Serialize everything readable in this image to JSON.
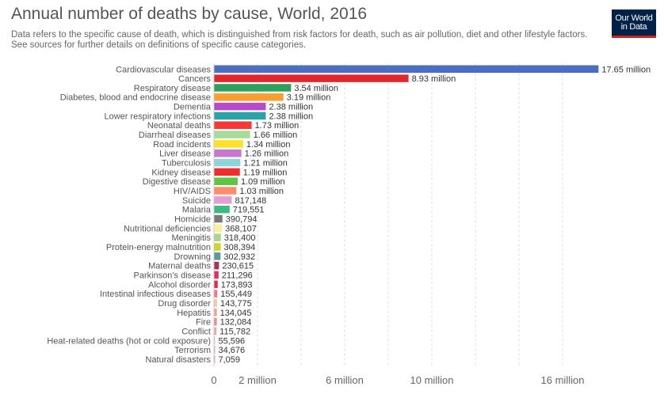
{
  "header": {
    "title": "Annual number of deaths by cause, World, 2016",
    "subtitle": "Data refers to the specific cause of death, which is distinguished from risk factors for death, such as air pollution, diet and other lifestyle factors. See sources for further details on definitions of specific cause categories."
  },
  "logo": {
    "line1": "Our World",
    "line2": "in Data",
    "bg_color": "#002147",
    "accent_color": "#ce261e"
  },
  "chart_data": {
    "type": "bar",
    "orientation": "horizontal",
    "title": "Annual number of deaths by cause, World, 2016",
    "xlabel": "",
    "ylabel": "",
    "xlim": [
      0,
      20000000
    ],
    "x_ticks": [
      0,
      2000000,
      6000000,
      10000000,
      16000000
    ],
    "x_tick_labels": [
      "0",
      "2 million",
      "6 million",
      "10 million",
      "16 million"
    ],
    "gridlines": [
      2000000,
      4000000,
      6000000,
      8000000,
      10000000,
      12000000,
      14000000,
      16000000
    ],
    "grid": true,
    "categories": [
      "Cardiovascular diseases",
      "Cancers",
      "Respiratory disease",
      "Diabetes, blood and endocrine disease",
      "Dementia",
      "Lower respiratory infections",
      "Neonatal deaths",
      "Diarrheal diseases",
      "Road incidents",
      "Liver disease",
      "Tuberculosis",
      "Kidney disease",
      "Digestive disease",
      "HIV/AIDS",
      "Suicide",
      "Malaria",
      "Homicide",
      "Nutritional deficiencies",
      "Meningitis",
      "Protein-energy malnutrition",
      "Drowning",
      "Maternal deaths",
      "Parkinson's disease",
      "Alcohol disorder",
      "Intestinal infectious diseases",
      "Drug disorder",
      "Hepatitis",
      "Fire",
      "Conflict",
      "Heat-related deaths (hot or cold exposure)",
      "Terrorism",
      "Natural disasters"
    ],
    "values": [
      17650000,
      8930000,
      3540000,
      3190000,
      2380000,
      2380000,
      1730000,
      1660000,
      1340000,
      1260000,
      1210000,
      1190000,
      1090000,
      1030000,
      817148,
      719551,
      390794,
      368107,
      318400,
      308394,
      302932,
      230615,
      211296,
      173893,
      155449,
      143775,
      134045,
      132084,
      115782,
      55596,
      34676,
      7059
    ],
    "value_labels": [
      "17.65 million",
      "8.93 million",
      "3.54 million",
      "3.19 million",
      "2.38 million",
      "2.38 million",
      "1.73 million",
      "1.66 million",
      "1.34 million",
      "1.26 million",
      "1.21 million",
      "1.19 million",
      "1.09 million",
      "1.03 million",
      "817,148",
      "719,551",
      "390,794",
      "368,107",
      "318,400",
      "308,394",
      "302,932",
      "230,615",
      "211,296",
      "173,893",
      "155,449",
      "143,775",
      "134,045",
      "132,084",
      "115,782",
      "55,596",
      "34,676",
      "7,059"
    ],
    "colors": [
      "#4c6dc4",
      "#e3282c",
      "#2ea05d",
      "#f7a02f",
      "#b74bc7",
      "#2aa3a8",
      "#f73636",
      "#a5dc97",
      "#ffe228",
      "#c776cf",
      "#8ed4d8",
      "#ef2d2d",
      "#5dc743",
      "#fd8d6a",
      "#e59ed1",
      "#3cba81",
      "#787878",
      "#fcef9a",
      "#a8d68c",
      "#d2d22c",
      "#5d9a9e",
      "#ad334a",
      "#df2e6e",
      "#e62d46",
      "#ee7a86",
      "#f9c5a5",
      "#f2a18e",
      "#ee8a8a",
      "#f1a6a0",
      "#d0d0d0",
      "#d9a9a9",
      "#c9b0b0"
    ]
  }
}
